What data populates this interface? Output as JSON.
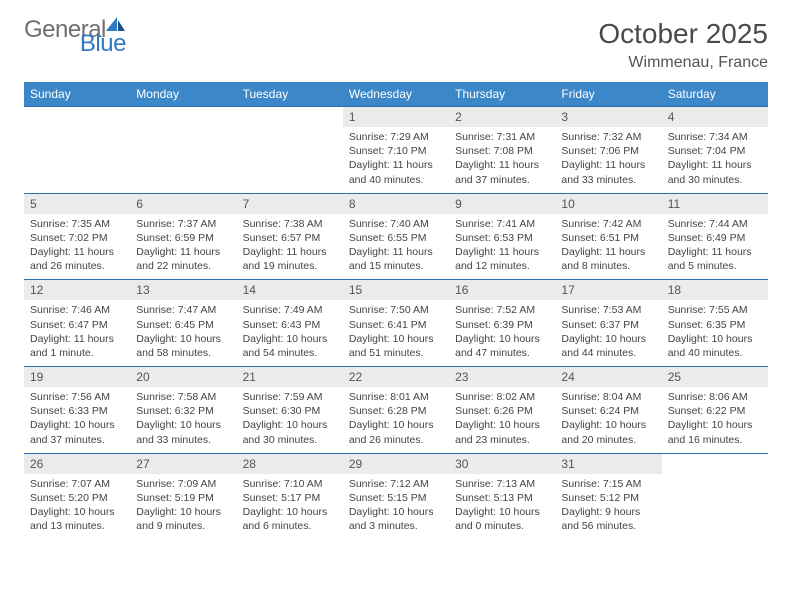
{
  "brand": {
    "general": "General",
    "blue": "Blue"
  },
  "title": "October 2025",
  "location": "Wimmenau, France",
  "header_color": "#3b87c8",
  "rule_color": "#2b6fb0",
  "daynum_bg": "#ebebeb",
  "days": [
    "Sunday",
    "Monday",
    "Tuesday",
    "Wednesday",
    "Thursday",
    "Friday",
    "Saturday"
  ],
  "weeks": [
    [
      null,
      null,
      null,
      {
        "n": "1",
        "sr": "7:29 AM",
        "ss": "7:10 PM",
        "dl": "11 hours and 40 minutes."
      },
      {
        "n": "2",
        "sr": "7:31 AM",
        "ss": "7:08 PM",
        "dl": "11 hours and 37 minutes."
      },
      {
        "n": "3",
        "sr": "7:32 AM",
        "ss": "7:06 PM",
        "dl": "11 hours and 33 minutes."
      },
      {
        "n": "4",
        "sr": "7:34 AM",
        "ss": "7:04 PM",
        "dl": "11 hours and 30 minutes."
      }
    ],
    [
      {
        "n": "5",
        "sr": "7:35 AM",
        "ss": "7:02 PM",
        "dl": "11 hours and 26 minutes."
      },
      {
        "n": "6",
        "sr": "7:37 AM",
        "ss": "6:59 PM",
        "dl": "11 hours and 22 minutes."
      },
      {
        "n": "7",
        "sr": "7:38 AM",
        "ss": "6:57 PM",
        "dl": "11 hours and 19 minutes."
      },
      {
        "n": "8",
        "sr": "7:40 AM",
        "ss": "6:55 PM",
        "dl": "11 hours and 15 minutes."
      },
      {
        "n": "9",
        "sr": "7:41 AM",
        "ss": "6:53 PM",
        "dl": "11 hours and 12 minutes."
      },
      {
        "n": "10",
        "sr": "7:42 AM",
        "ss": "6:51 PM",
        "dl": "11 hours and 8 minutes."
      },
      {
        "n": "11",
        "sr": "7:44 AM",
        "ss": "6:49 PM",
        "dl": "11 hours and 5 minutes."
      }
    ],
    [
      {
        "n": "12",
        "sr": "7:46 AM",
        "ss": "6:47 PM",
        "dl": "11 hours and 1 minute."
      },
      {
        "n": "13",
        "sr": "7:47 AM",
        "ss": "6:45 PM",
        "dl": "10 hours and 58 minutes."
      },
      {
        "n": "14",
        "sr": "7:49 AM",
        "ss": "6:43 PM",
        "dl": "10 hours and 54 minutes."
      },
      {
        "n": "15",
        "sr": "7:50 AM",
        "ss": "6:41 PM",
        "dl": "10 hours and 51 minutes."
      },
      {
        "n": "16",
        "sr": "7:52 AM",
        "ss": "6:39 PM",
        "dl": "10 hours and 47 minutes."
      },
      {
        "n": "17",
        "sr": "7:53 AM",
        "ss": "6:37 PM",
        "dl": "10 hours and 44 minutes."
      },
      {
        "n": "18",
        "sr": "7:55 AM",
        "ss": "6:35 PM",
        "dl": "10 hours and 40 minutes."
      }
    ],
    [
      {
        "n": "19",
        "sr": "7:56 AM",
        "ss": "6:33 PM",
        "dl": "10 hours and 37 minutes."
      },
      {
        "n": "20",
        "sr": "7:58 AM",
        "ss": "6:32 PM",
        "dl": "10 hours and 33 minutes."
      },
      {
        "n": "21",
        "sr": "7:59 AM",
        "ss": "6:30 PM",
        "dl": "10 hours and 30 minutes."
      },
      {
        "n": "22",
        "sr": "8:01 AM",
        "ss": "6:28 PM",
        "dl": "10 hours and 26 minutes."
      },
      {
        "n": "23",
        "sr": "8:02 AM",
        "ss": "6:26 PM",
        "dl": "10 hours and 23 minutes."
      },
      {
        "n": "24",
        "sr": "8:04 AM",
        "ss": "6:24 PM",
        "dl": "10 hours and 20 minutes."
      },
      {
        "n": "25",
        "sr": "8:06 AM",
        "ss": "6:22 PM",
        "dl": "10 hours and 16 minutes."
      }
    ],
    [
      {
        "n": "26",
        "sr": "7:07 AM",
        "ss": "5:20 PM",
        "dl": "10 hours and 13 minutes."
      },
      {
        "n": "27",
        "sr": "7:09 AM",
        "ss": "5:19 PM",
        "dl": "10 hours and 9 minutes."
      },
      {
        "n": "28",
        "sr": "7:10 AM",
        "ss": "5:17 PM",
        "dl": "10 hours and 6 minutes."
      },
      {
        "n": "29",
        "sr": "7:12 AM",
        "ss": "5:15 PM",
        "dl": "10 hours and 3 minutes."
      },
      {
        "n": "30",
        "sr": "7:13 AM",
        "ss": "5:13 PM",
        "dl": "10 hours and 0 minutes."
      },
      {
        "n": "31",
        "sr": "7:15 AM",
        "ss": "5:12 PM",
        "dl": "9 hours and 56 minutes."
      },
      null
    ]
  ],
  "labels": {
    "sunrise": "Sunrise: ",
    "sunset": "Sunset: ",
    "daylight": "Daylight: "
  }
}
